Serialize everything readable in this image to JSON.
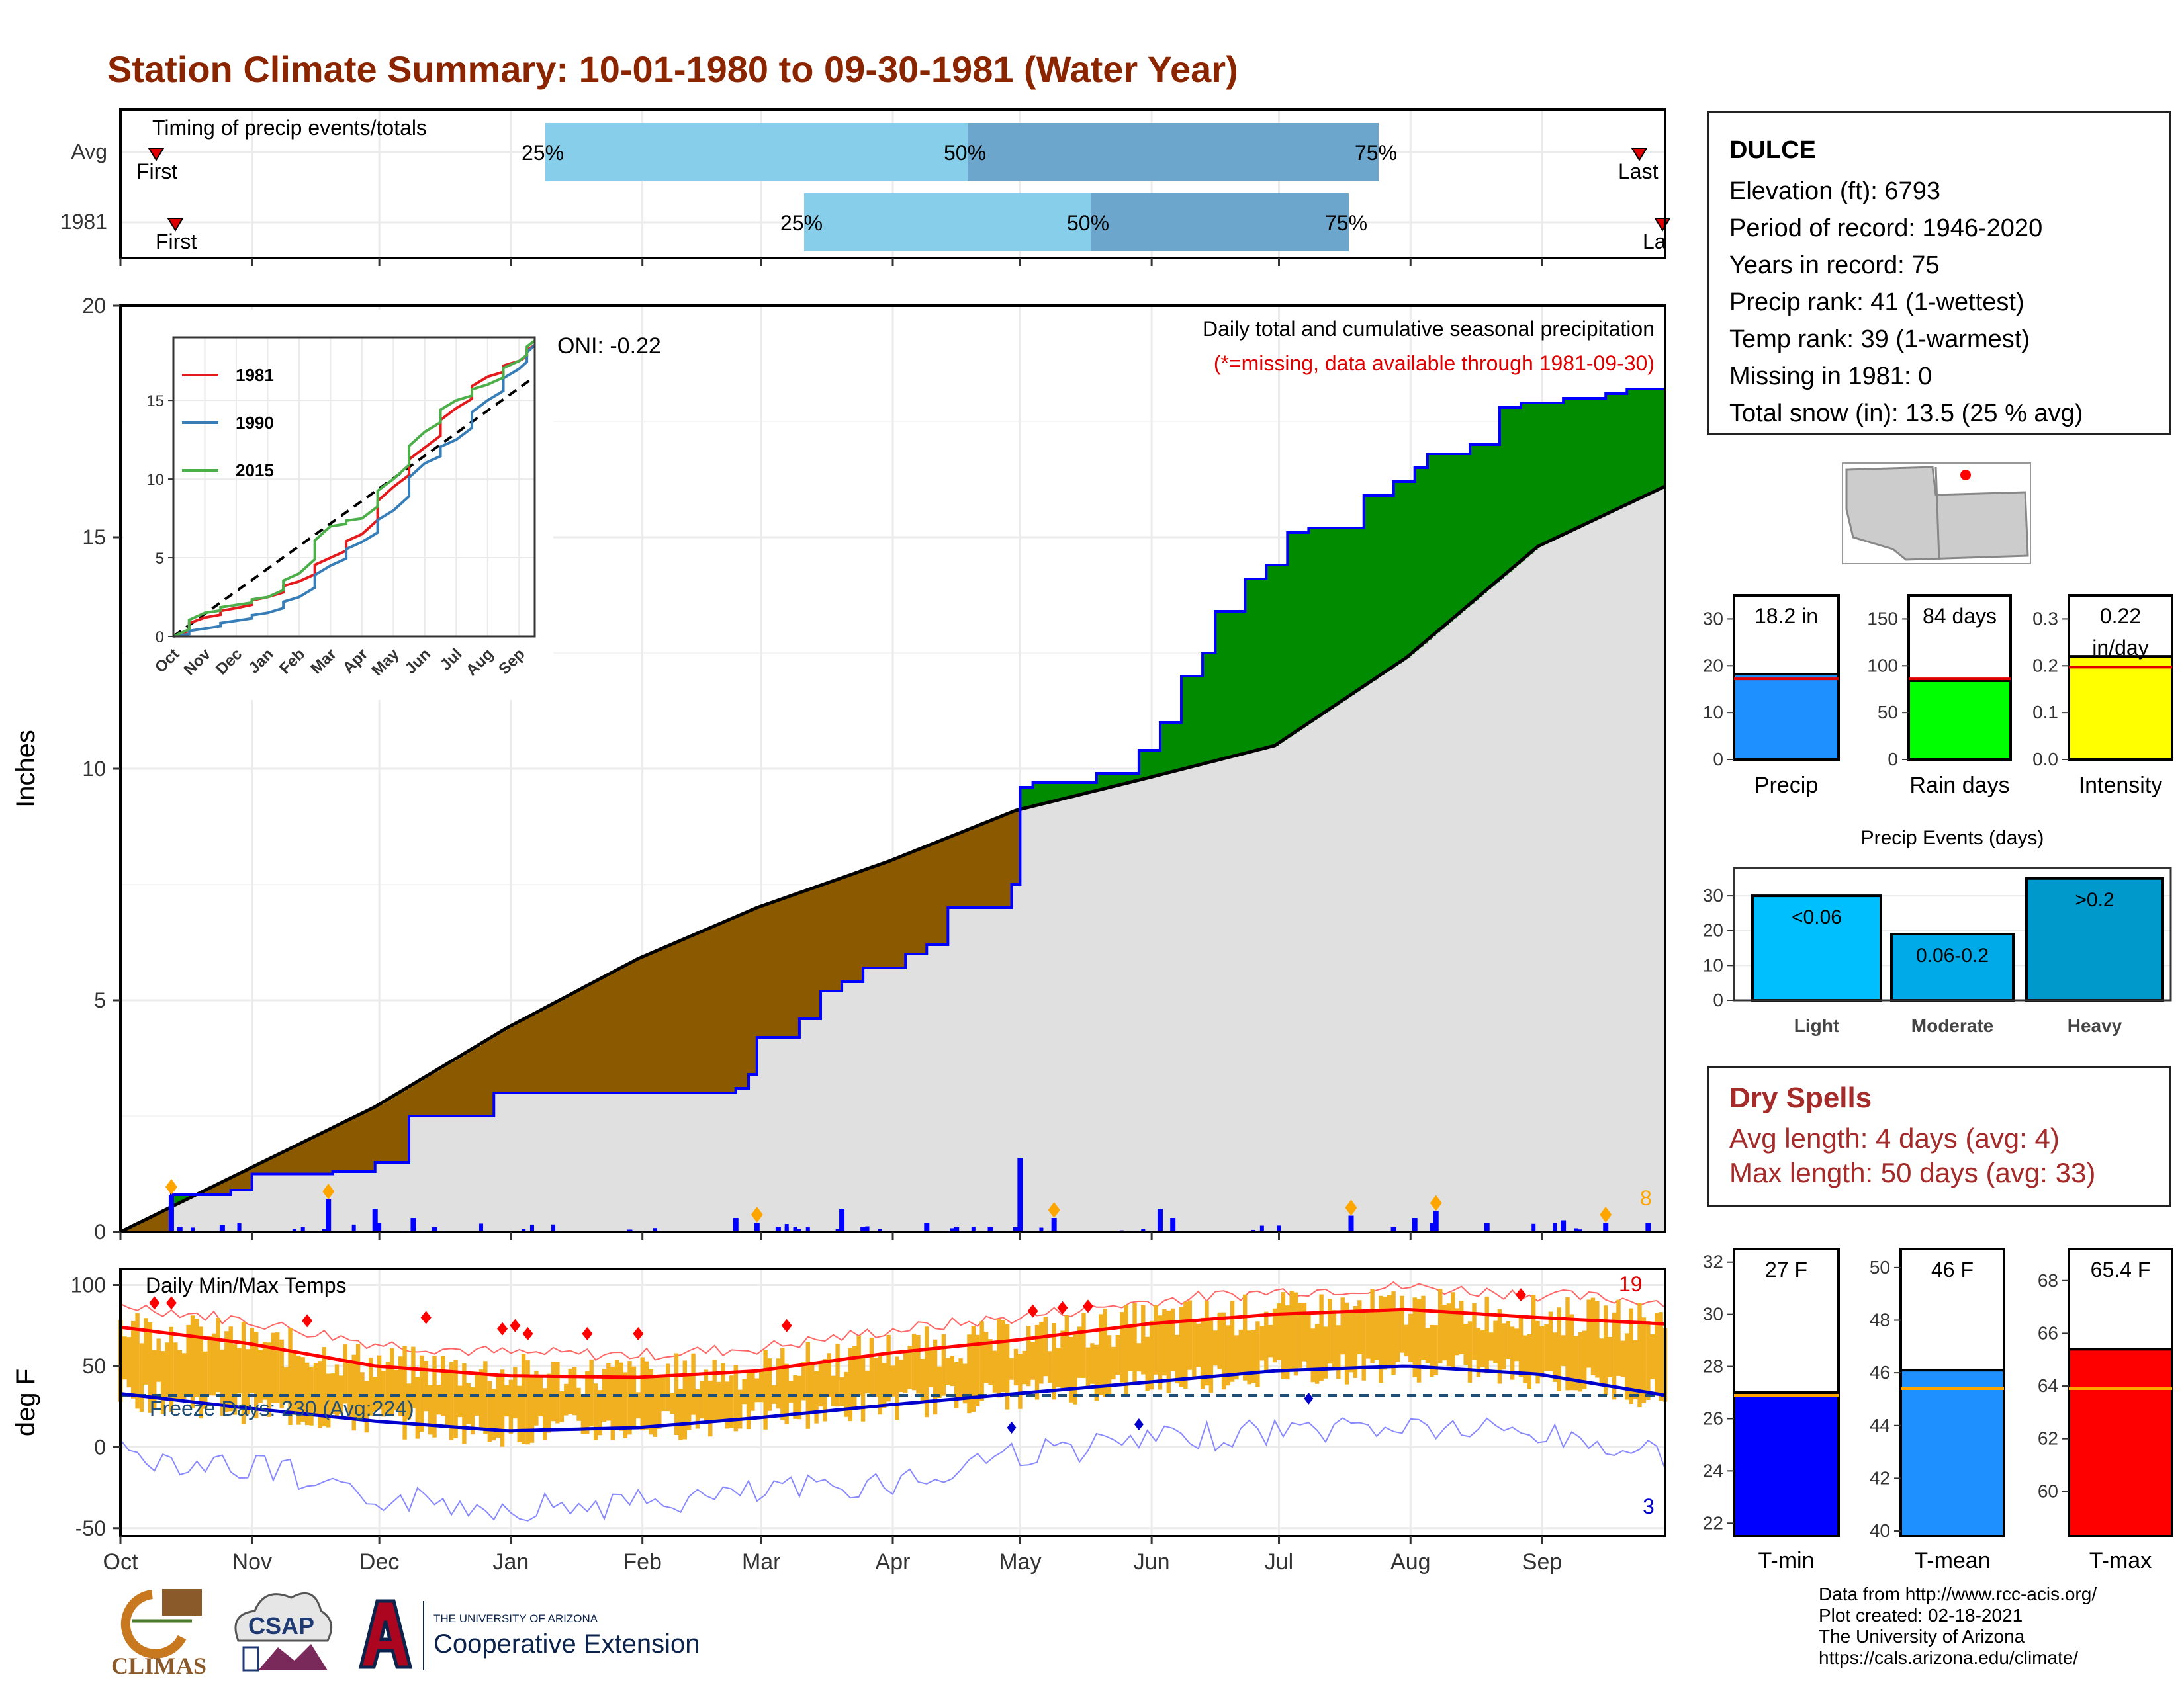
{
  "title": "Station Climate Summary: 10-01-1980 to 09-30-1981 (Water Year)",
  "colors": {
    "title": "#8B2500",
    "quartile_light": "#87CEEB",
    "quartile_dark": "#6CA6CD",
    "cum_avg_fill": "#E0E0E0",
    "deficit": "#8B5A00",
    "surplus": "#008B00",
    "cum_line": "#0000FF",
    "daily_bar": "#0000FF",
    "temp_bar": "#F0B020",
    "max_line": "#FF0000",
    "min_line": "#0000CC",
    "dry_text": "#A52A2A"
  },
  "timing_panel": {
    "title": "Timing of precip events/totals",
    "rows": [
      {
        "label": "Avg",
        "q25": "25%",
        "q50": "50%",
        "q75": "75%",
        "first": "First",
        "last": "Last"
      },
      {
        "label": "1981",
        "q25": "25%",
        "q50": "50%",
        "q75": "75%",
        "first": "First",
        "last": "Last"
      }
    ]
  },
  "precip_panel": {
    "ylabel": "Inches",
    "yticks": [
      "0",
      "5",
      "10",
      "15",
      "20"
    ],
    "ylim": [
      0,
      20
    ],
    "oni": "ONI: -0.22",
    "caption1": "Daily total and cumulative seasonal precipitation",
    "caption2": "(*=missing, data available through 1981-09-30)",
    "count_label": "8"
  },
  "inset": {
    "yticks": [
      "0",
      "5",
      "10",
      "15"
    ],
    "xticks": [
      "Oct",
      "Nov",
      "Dec",
      "Jan",
      "Feb",
      "Mar",
      "Apr",
      "May",
      "Jun",
      "Jul",
      "Aug",
      "Sep"
    ],
    "legend": [
      {
        "name": "1981",
        "color": "#E41A1C"
      },
      {
        "name": "1990",
        "color": "#377EB8"
      },
      {
        "name": "2015",
        "color": "#4DAF4A"
      }
    ]
  },
  "temp_panel": {
    "title": "Daily Min/Max Temps",
    "ylabel": "deg F",
    "yticks": [
      "100",
      "50",
      "0",
      "-50"
    ],
    "freeze": "Freeze Days: 230 (Avg:224)",
    "max_count": "19",
    "min_count": "3"
  },
  "months": [
    "Oct",
    "Nov",
    "Dec",
    "Jan",
    "Feb",
    "Mar",
    "Apr",
    "May",
    "Jun",
    "Jul",
    "Aug",
    "Sep"
  ],
  "station": {
    "name": "DULCE",
    "lines": [
      "Elevation (ft): 6793",
      "Period of record: 1946-2020",
      "Years in record: 75",
      "Precip rank: 41 (1-wettest)",
      "Temp rank: 39 (1-warmest)",
      "Missing in 1981: 0",
      "Total snow (in): 13.5 (25 % avg)"
    ]
  },
  "summary_bars": [
    {
      "name": "Precip",
      "label": "18.2 in",
      "value": 18.2,
      "avg": 17.2,
      "yticks": [
        "0",
        "10",
        "20",
        "30"
      ],
      "ymax": 35,
      "color": "#1E90FF"
    },
    {
      "name": "Rain days",
      "label": "84 days",
      "value": 84,
      "avg": 86,
      "yticks": [
        "0",
        "50",
        "100",
        "150"
      ],
      "ymax": 175,
      "color": "#00FF00"
    },
    {
      "name": "Intensity",
      "label1": "0.22",
      "label2": "in/day",
      "value": 0.22,
      "avg": 0.197,
      "yticks": [
        "0.0",
        "0.1",
        "0.2",
        "0.3"
      ],
      "ymax": 0.35,
      "color": "#FFFF00"
    }
  ],
  "events": {
    "title": "Precip Events (days)",
    "yticks": [
      "0",
      "10",
      "20",
      "30"
    ],
    "ymax": 38,
    "bars": [
      {
        "name": "Light",
        "label": "<0.06",
        "value": 30,
        "color": "#00BFFF"
      },
      {
        "name": "Moderate",
        "label": "0.06-0.2",
        "value": 19,
        "color": "#00AAE8"
      },
      {
        "name": "Heavy",
        "label": ">0.2",
        "value": 35,
        "color": "#0099CC"
      }
    ]
  },
  "dry_spells": {
    "title": "Dry Spells",
    "avg_line": "Avg length: 4 days (avg: 4)",
    "max_line": "Max length: 50 days (avg: 33)"
  },
  "temp_bars": [
    {
      "name": "T-min",
      "label": "27 F",
      "value": 27,
      "avg": 26.9,
      "yticks": [
        "22",
        "24",
        "26",
        "28",
        "30",
        "32"
      ],
      "ylim": [
        21.5,
        32.5
      ],
      "color": "#0000FF"
    },
    {
      "name": "T-mean",
      "label": "46 F",
      "value": 46.1,
      "avg": 45.4,
      "yticks": [
        "40",
        "42",
        "44",
        "46",
        "48",
        "50"
      ],
      "ylim": [
        39.8,
        50.7
      ],
      "color": "#1E90FF"
    },
    {
      "name": "T-max",
      "label": "65.4 F",
      "value": 65.4,
      "avg": 63.9,
      "yticks": [
        "60",
        "62",
        "64",
        "66",
        "68"
      ],
      "ylim": [
        58.3,
        69.2
      ],
      "color": "#FF0000"
    }
  ],
  "credits": [
    "Data from http://www.rcc-acis.org/",
    "Plot created: 02-18-2021",
    "The University of Arizona",
    "https://cals.arizona.edu/climate/"
  ],
  "logos": {
    "climas": "CLIMAS",
    "csap": "CSAP",
    "ua_line1": "THE UNIVERSITY OF ARIZONA",
    "ua_line2": "Cooperative Extension"
  },
  "chart_data": [
    {
      "type": "area",
      "title": "Daily total and cumulative seasonal precipitation",
      "ylabel": "Inches",
      "ylim": [
        0,
        20
      ],
      "x_unit": "day of water year (Oct 1 = 0)",
      "series": [
        {
          "name": "avg_cumulative",
          "x": [
            0,
            30,
            60,
            91,
            122,
            150,
            181,
            211,
            242,
            272,
            303,
            334,
            364
          ],
          "values": [
            0,
            1.35,
            2.7,
            4.4,
            5.9,
            7.0,
            8.0,
            9.1,
            9.8,
            10.5,
            12.4,
            14.8,
            16.1
          ]
        },
        {
          "name": "1981_cumulative",
          "x": [
            0,
            12,
            26,
            31,
            50,
            60,
            68,
            88,
            120,
            145,
            148,
            150,
            160,
            165,
            170,
            175,
            185,
            190,
            195,
            210,
            212,
            215,
            230,
            240,
            245,
            250,
            255,
            258,
            265,
            270,
            275,
            280,
            285,
            293,
            300,
            305,
            308,
            312,
            318,
            325,
            330,
            340,
            345,
            350,
            355,
            360,
            364
          ],
          "values": [
            0,
            0.8,
            0.9,
            1.25,
            1.3,
            1.5,
            2.5,
            3.0,
            3.0,
            3.1,
            3.4,
            4.2,
            4.6,
            5.2,
            5.4,
            5.7,
            6.0,
            6.2,
            7.0,
            7.5,
            9.6,
            9.7,
            9.9,
            10.4,
            11.0,
            12.0,
            12.5,
            13.4,
            14.1,
            14.4,
            15.1,
            15.2,
            15.2,
            15.9,
            16.2,
            16.5,
            16.8,
            16.8,
            17.0,
            17.8,
            17.9,
            18.0,
            18.0,
            18.1,
            18.2,
            18.2,
            18.2
          ]
        },
        {
          "name": "daily_precip",
          "x": [
            12,
            14,
            24,
            49,
            60,
            69,
            74,
            120,
            145,
            150,
            155,
            170,
            175,
            190,
            197,
            205,
            211,
            212,
            220,
            245,
            248,
            290,
            300,
            305,
            310,
            322,
            340,
            350,
            360
          ],
          "values": [
            0.8,
            0.1,
            0.15,
            0.7,
            0.5,
            0.3,
            0.1,
            0.05,
            0.3,
            0.2,
            0.1,
            0.5,
            0.1,
            0.2,
            0.1,
            0.1,
            0.1,
            1.6,
            0.3,
            0.5,
            0.3,
            0.35,
            0.1,
            0.3,
            0.45,
            0.2,
            0.25,
            0.2,
            0.2
          ]
        }
      ]
    },
    {
      "type": "line",
      "title": "Daily Min/Max Temps",
      "ylabel": "deg F",
      "ylim": [
        -55,
        110
      ],
      "x_unit": "day of water year (Oct 1 = 0)",
      "series": [
        {
          "name": "avg_max",
          "x": [
            0,
            30,
            60,
            91,
            122,
            150,
            181,
            211,
            242,
            272,
            303,
            334,
            364
          ],
          "values": [
            74,
            64,
            50,
            44,
            43,
            47,
            58,
            66,
            76,
            82,
            85,
            80,
            76
          ]
        },
        {
          "name": "avg_min",
          "x": [
            0,
            30,
            60,
            91,
            122,
            150,
            181,
            211,
            242,
            272,
            303,
            334,
            364
          ],
          "values": [
            33,
            24,
            16,
            10,
            12,
            18,
            26,
            33,
            40,
            47,
            50,
            45,
            32
          ]
        },
        {
          "name": "freeze_line",
          "x": [
            0,
            364
          ],
          "values": [
            32,
            32
          ]
        }
      ]
    },
    {
      "type": "line",
      "title": "",
      "xticks": [
        "Oct",
        "Nov",
        "Dec",
        "Jan",
        "Feb",
        "Mar",
        "Apr",
        "May",
        "Jun",
        "Jul",
        "Aug",
        "Sep"
      ],
      "ylim": [
        0,
        19
      ],
      "series": [
        {
          "name": "1981",
          "x": [
            0,
            1,
            2,
            3,
            4,
            5,
            6,
            7,
            8,
            9,
            10,
            11,
            11.5
          ],
          "values": [
            0,
            1.2,
            1.8,
            2.5,
            3.5,
            5,
            6.5,
            9.5,
            12,
            14.5,
            16.5,
            17.5,
            18.5
          ]
        },
        {
          "name": "1990",
          "x": [
            0,
            1,
            2,
            3,
            4,
            5,
            6,
            7,
            8,
            9,
            10,
            11,
            11.5
          ],
          "values": [
            0,
            0.5,
            1,
            1.5,
            2.5,
            4.5,
            6,
            8,
            11,
            12.5,
            15,
            17,
            18.5
          ]
        },
        {
          "name": "2015",
          "x": [
            0,
            1,
            2,
            3,
            4,
            5,
            6,
            7,
            8,
            9,
            10,
            11,
            11.5
          ],
          "values": [
            0,
            1.5,
            2,
            2.5,
            4,
            7,
            7.5,
            10,
            13,
            15,
            16,
            17.5,
            18.8
          ]
        }
      ]
    }
  ]
}
